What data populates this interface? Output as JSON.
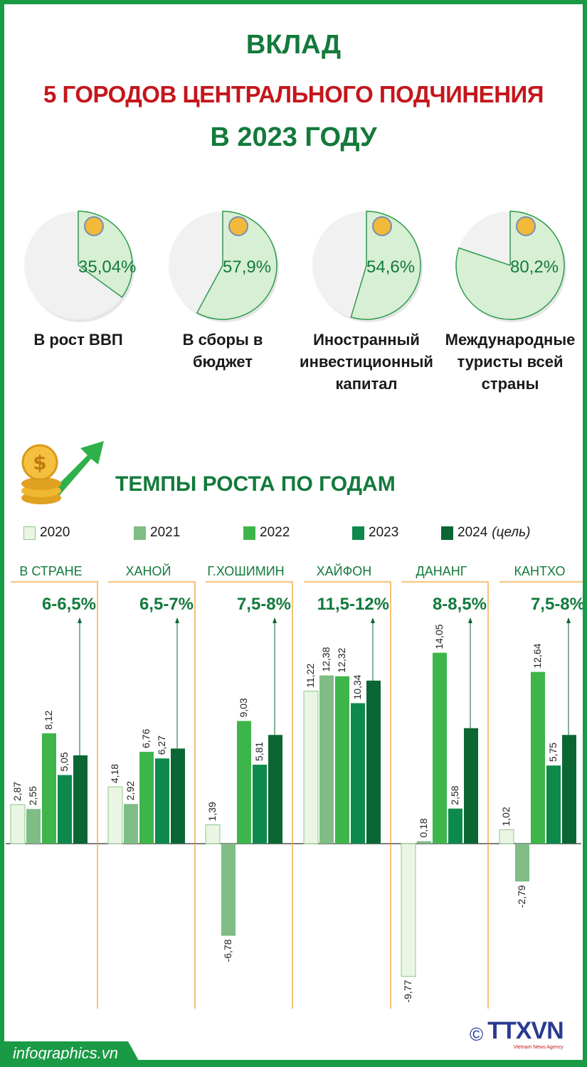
{
  "title": {
    "line1": "ВКЛАД",
    "line2": "5 ГОРОДОВ ЦЕНТРАЛЬНОГО ПОДЧИНЕНИЯ",
    "line3": "В 2023 ГОДУ"
  },
  "pies": [
    {
      "value": 35.04,
      "label_value": "35,04%",
      "label": "В рост ВВП",
      "icon": "gdp-chart-icon"
    },
    {
      "value": 57.9,
      "label_value": "57,9%",
      "label": "В сборы в бюджет",
      "icon": "bank-icon"
    },
    {
      "value": 54.6,
      "label_value": "54,6%",
      "label": "Иностранный инвестиционный капитал",
      "icon": "hand-coin-icon"
    },
    {
      "value": 80.2,
      "label_value": "80,2%",
      "label": "Международные туристы всей страны",
      "icon": "tourist-icon"
    }
  ],
  "colors": {
    "frame": "#1a9a45",
    "title_green": "#137a3c",
    "title_red": "#c4161c",
    "pie_bg": "#f1f1f1",
    "pie_slice": "#d7efd3",
    "axis": "#f0a030"
  },
  "section_title": "ТЕМПЫ РОСТА ПО ГОДАМ",
  "chart_data": {
    "type": "bar",
    "title": "ТЕМПЫ РОСТА ПО ГОДАМ",
    "unit": "%",
    "series": [
      {
        "name": "2020",
        "color": "#eaf5e4"
      },
      {
        "name": "2021",
        "color": "#7fbc86"
      },
      {
        "name": "2022",
        "color": "#3db54a"
      },
      {
        "name": "2023",
        "color": "#0d8a4b"
      },
      {
        "name": "2024",
        "name_suffix": "(цель)",
        "color": "#0a6633"
      }
    ],
    "categories": [
      "В СТРАНЕ",
      "ХАНОЙ",
      "Г.ХОШИМИН",
      "ХАЙФОН",
      "ДАНАНГ",
      "КАНТХО"
    ],
    "targets_2024": [
      "6-6,5%",
      "6,5-7%",
      "7,5-8%",
      "11,5-12%",
      "8-8,5%",
      "7,5-8%"
    ],
    "values": [
      [
        2.87,
        2.55,
        8.12,
        5.05,
        6.5
      ],
      [
        4.18,
        2.92,
        6.76,
        6.27,
        7.0
      ],
      [
        1.39,
        -6.78,
        9.03,
        5.81,
        8.0
      ],
      [
        11.22,
        12.38,
        12.32,
        10.34,
        12.0
      ],
      [
        -9.77,
        0.18,
        14.05,
        2.58,
        8.5
      ],
      [
        1.02,
        -2.79,
        12.64,
        5.75,
        8.0
      ]
    ],
    "labels": [
      [
        "2,87",
        "2,55",
        "8,12",
        "5,05",
        ""
      ],
      [
        "4,18",
        "2,92",
        "6,76",
        "6,27",
        ""
      ],
      [
        "1,39",
        "-6,78",
        "9,03",
        "5,81",
        ""
      ],
      [
        "11,22",
        "12,38",
        "12,32",
        "10,34",
        ""
      ],
      [
        "-9,77",
        "0,18",
        "14,05",
        "2,58",
        ""
      ],
      [
        "1,02",
        "-2,79",
        "12,64",
        "5,75",
        ""
      ]
    ],
    "ylim": [
      -10,
      15
    ]
  },
  "footer": {
    "site": "infographics.vn",
    "copyright": "©",
    "agency": "TTXVN",
    "agency_sub": "Vietnam News Agency"
  }
}
